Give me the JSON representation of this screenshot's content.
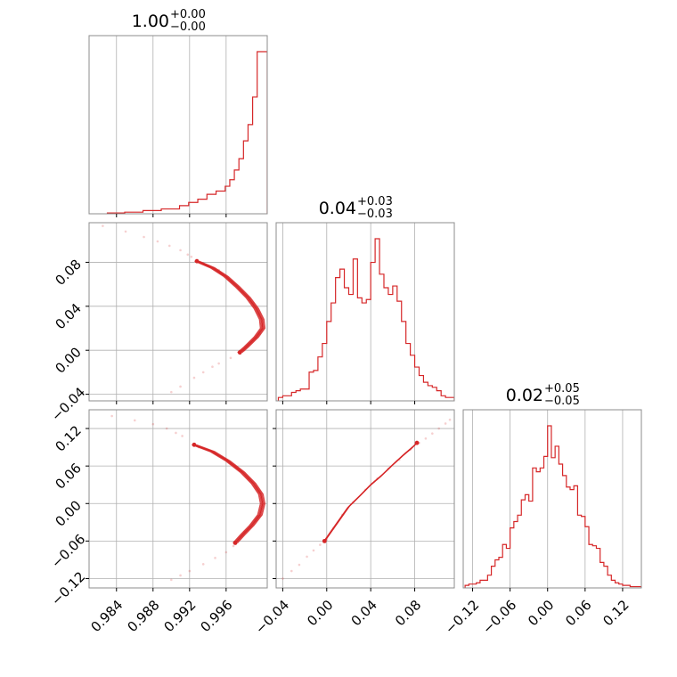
{
  "chart_data": {
    "type": "corner",
    "color": "#d62728",
    "parameters": [
      {
        "range": [
          0.981,
          1.0005
        ],
        "ticks": [
          0.984,
          0.988,
          0.992,
          0.996
        ],
        "tick_labels": [
          "0.984",
          "0.988",
          "0.992",
          "0.996"
        ]
      },
      {
        "range": [
          -0.046,
          0.116
        ],
        "ticks": [
          -0.04,
          0.0,
          0.04,
          0.08
        ],
        "tick_labels": [
          "−0.04",
          "0.00",
          "0.04",
          "0.08"
        ]
      },
      {
        "range": [
          -0.135,
          0.15
        ],
        "ticks": [
          -0.12,
          -0.06,
          0.0,
          0.06,
          0.12
        ],
        "tick_labels": [
          "−0.12",
          "−0.06",
          "0.00",
          "0.06",
          "0.12"
        ]
      }
    ],
    "titles": [
      {
        "value": "1.00",
        "plus": "+0.00",
        "minus": "−0.00"
      },
      {
        "value": "0.04",
        "plus": "+0.03",
        "minus": "−0.03"
      },
      {
        "value": "0.02",
        "plus": "+0.05",
        "minus": "−0.05"
      }
    ],
    "histograms": [
      {
        "edges": [
          0.983,
          0.9849,
          0.9869,
          0.9889,
          0.9909,
          0.9919,
          0.9929,
          0.9939,
          0.9949,
          0.9959,
          0.9964,
          0.9969,
          0.9974,
          0.9979,
          0.9984,
          0.9989,
          0.9994,
          1.0,
          1.0005
        ],
        "counts": [
          0.5,
          1,
          2,
          3,
          5,
          7,
          9,
          12,
          14,
          17,
          21,
          27,
          34,
          45,
          55,
          72,
          100,
          100
        ]
      },
      {
        "edges": [
          -0.044,
          -0.04,
          -0.036,
          -0.032,
          -0.028,
          -0.024,
          -0.02,
          -0.016,
          -0.012,
          -0.008,
          -0.004,
          0.0,
          0.004,
          0.008,
          0.012,
          0.016,
          0.02,
          0.024,
          0.028,
          0.032,
          0.036,
          0.04,
          0.044,
          0.048,
          0.052,
          0.056,
          0.06,
          0.064,
          0.068,
          0.072,
          0.076,
          0.08,
          0.084,
          0.088,
          0.092,
          0.096,
          0.1,
          0.104,
          0.108,
          0.112,
          0.116
        ],
        "counts": [
          2,
          3,
          3,
          5,
          6,
          7,
          7,
          17,
          18,
          26,
          34,
          47,
          58,
          73,
          78,
          67,
          63,
          84,
          61,
          58,
          60,
          82,
          96,
          75,
          67,
          63,
          68,
          59,
          47,
          34,
          27,
          20,
          15,
          11,
          9,
          8,
          6,
          3,
          2,
          2
        ]
      },
      {
        "edges": [
          -0.132,
          -0.126,
          -0.12,
          -0.114,
          -0.108,
          -0.102,
          -0.096,
          -0.09,
          -0.084,
          -0.078,
          -0.072,
          -0.066,
          -0.06,
          -0.054,
          -0.048,
          -0.042,
          -0.036,
          -0.03,
          -0.024,
          -0.018,
          -0.012,
          -0.006,
          0.0,
          0.006,
          0.012,
          0.018,
          0.024,
          0.03,
          0.036,
          0.042,
          0.048,
          0.054,
          0.06,
          0.066,
          0.072,
          0.078,
          0.084,
          0.09,
          0.096,
          0.102,
          0.108,
          0.114,
          0.12,
          0.126,
          0.132,
          0.138,
          0.144,
          0.15
        ],
        "counts": [
          2,
          3,
          3,
          4,
          6,
          6,
          10,
          17,
          22,
          24,
          34,
          31,
          47,
          52,
          57,
          69,
          73,
          68,
          94,
          91,
          94,
          103,
          127,
          102,
          111,
          97,
          88,
          79,
          77,
          80,
          57,
          56,
          48,
          34,
          33,
          31,
          20,
          17,
          10,
          6,
          4,
          3,
          2,
          2,
          1,
          1,
          1
        ]
      }
    ],
    "pairs": [
      {
        "x_param": 0,
        "y_param": 1,
        "contour": [
          [
            0.9928,
            0.081
          ],
          [
            0.9945,
            0.075
          ],
          [
            0.996,
            0.067
          ],
          [
            0.9972,
            0.058
          ],
          [
            0.9984,
            0.048
          ],
          [
            0.9993,
            0.038
          ],
          [
            0.9999,
            0.028
          ],
          [
            1.0,
            0.02
          ],
          [
            0.9993,
            0.012
          ],
          [
            0.9982,
            0.003
          ],
          [
            0.9975,
            -0.002
          ]
        ],
        "scatter": [
          [
            0.9825,
            0.113
          ],
          [
            0.985,
            0.108
          ],
          [
            0.987,
            0.103
          ],
          [
            0.9885,
            0.099
          ],
          [
            0.9898,
            0.095
          ],
          [
            0.991,
            0.091
          ],
          [
            0.9918,
            0.087
          ],
          [
            0.9922,
            0.085
          ],
          [
            0.9935,
            0.079
          ],
          [
            0.9952,
            0.073
          ],
          [
            0.9966,
            0.063
          ],
          [
            0.9978,
            0.053
          ],
          [
            0.999,
            0.043
          ],
          [
            0.9996,
            0.033
          ],
          [
            0.9997,
            0.015
          ],
          [
            0.998,
            0.0
          ],
          [
            0.9965,
            -0.007
          ],
          [
            0.9952,
            -0.012
          ],
          [
            0.9945,
            -0.015
          ],
          [
            0.9935,
            -0.02
          ],
          [
            0.9925,
            -0.025
          ],
          [
            0.991,
            -0.033
          ],
          [
            0.99,
            -0.038
          ]
        ]
      },
      {
        "x_param": 0,
        "y_param": 2,
        "contour": [
          [
            0.9925,
            0.094
          ],
          [
            0.9945,
            0.083
          ],
          [
            0.9962,
            0.068
          ],
          [
            0.9978,
            0.05
          ],
          [
            0.999,
            0.032
          ],
          [
            0.9998,
            0.015
          ],
          [
            1.0,
            0.0
          ],
          [
            0.9997,
            -0.018
          ],
          [
            0.9988,
            -0.035
          ],
          [
            0.9978,
            -0.05
          ],
          [
            0.997,
            -0.063
          ]
        ],
        "scatter": [
          [
            0.9835,
            0.14
          ],
          [
            0.986,
            0.133
          ],
          [
            0.988,
            0.127
          ],
          [
            0.9895,
            0.12
          ],
          [
            0.9905,
            0.113
          ],
          [
            0.9912,
            0.108
          ],
          [
            0.993,
            0.09
          ],
          [
            0.9955,
            0.075
          ],
          [
            0.997,
            0.06
          ],
          [
            0.9985,
            0.04
          ],
          [
            0.9996,
            0.02
          ],
          [
            0.9992,
            -0.028
          ],
          [
            0.998,
            -0.045
          ],
          [
            0.9968,
            -0.068
          ],
          [
            0.996,
            -0.078
          ],
          [
            0.9948,
            -0.087
          ],
          [
            0.9935,
            -0.097
          ],
          [
            0.992,
            -0.108
          ],
          [
            0.991,
            -0.115
          ],
          [
            0.99,
            -0.122
          ]
        ]
      },
      {
        "x_param": 1,
        "y_param": 2,
        "contour": [
          [
            -0.002,
            -0.06
          ],
          [
            0.004,
            -0.045
          ],
          [
            0.012,
            -0.025
          ],
          [
            0.02,
            -0.005
          ],
          [
            0.03,
            0.012
          ],
          [
            0.04,
            0.03
          ],
          [
            0.05,
            0.045
          ],
          [
            0.06,
            0.062
          ],
          [
            0.07,
            0.078
          ],
          [
            0.078,
            0.09
          ],
          [
            0.082,
            0.097
          ]
        ],
        "scatter": [
          [
            -0.04,
            -0.12
          ],
          [
            -0.032,
            -0.108
          ],
          [
            -0.025,
            -0.098
          ],
          [
            -0.018,
            -0.085
          ],
          [
            -0.012,
            -0.075
          ],
          [
            -0.006,
            -0.066
          ],
          [
            0.0,
            -0.058
          ],
          [
            0.006,
            -0.04
          ],
          [
            0.014,
            -0.018
          ],
          [
            0.024,
            0.002
          ],
          [
            0.035,
            0.022
          ],
          [
            0.046,
            0.04
          ],
          [
            0.056,
            0.056
          ],
          [
            0.066,
            0.07
          ],
          [
            0.076,
            0.086
          ],
          [
            0.084,
            0.097
          ],
          [
            0.09,
            0.104
          ],
          [
            0.096,
            0.112
          ],
          [
            0.102,
            0.12
          ],
          [
            0.108,
            0.128
          ],
          [
            0.112,
            0.134
          ]
        ]
      }
    ]
  }
}
